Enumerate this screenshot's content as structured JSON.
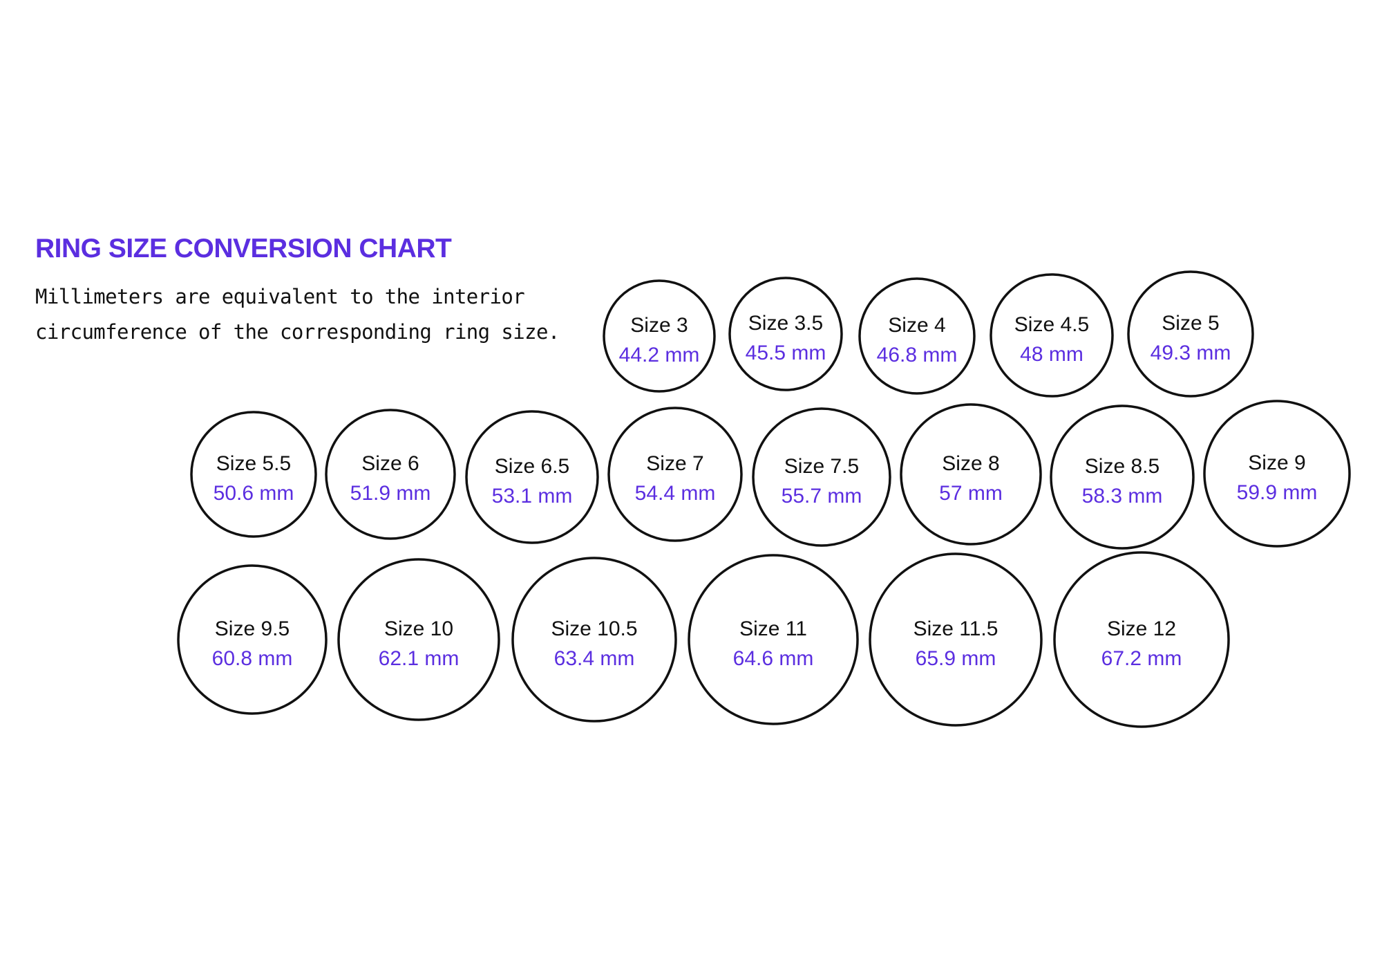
{
  "title": "RING SIZE CONVERSION CHART",
  "subtitle": "Millimeters are equivalent to the interior\ncircumference of the corresponding ring size.",
  "colors": {
    "accent": "#5b2ee0",
    "text": "#111111",
    "ring_stroke": "#111111"
  },
  "rings": [
    {
      "size": "Size 3",
      "mm": "44.2 mm"
    },
    {
      "size": "Size 3.5",
      "mm": "45.5 mm"
    },
    {
      "size": "Size 4",
      "mm": "46.8 mm"
    },
    {
      "size": "Size 4.5",
      "mm": "48 mm"
    },
    {
      "size": "Size 5",
      "mm": "49.3 mm"
    },
    {
      "size": "Size 5.5",
      "mm": "50.6 mm"
    },
    {
      "size": "Size 6",
      "mm": "51.9 mm"
    },
    {
      "size": "Size 6.5",
      "mm": "53.1 mm"
    },
    {
      "size": "Size 7",
      "mm": "54.4 mm"
    },
    {
      "size": "Size 7.5",
      "mm": "55.7 mm"
    },
    {
      "size": "Size 8",
      "mm": "57 mm"
    },
    {
      "size": "Size 8.5",
      "mm": "58.3 mm"
    },
    {
      "size": "Size 9",
      "mm": "59.9 mm"
    },
    {
      "size": "Size 9.5",
      "mm": "60.8 mm"
    },
    {
      "size": "Size 10",
      "mm": "62.1 mm"
    },
    {
      "size": "Size 10.5",
      "mm": "63.4 mm"
    },
    {
      "size": "Size 11",
      "mm": "64.6 mm"
    },
    {
      "size": "Size 11.5",
      "mm": "65.9 mm"
    },
    {
      "size": "Size 12",
      "mm": "67.2 mm"
    }
  ]
}
